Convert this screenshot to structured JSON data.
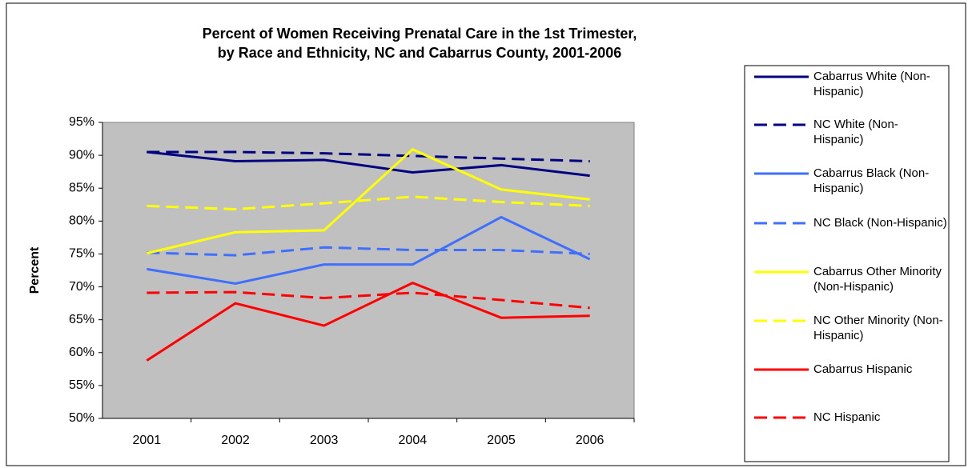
{
  "chart_data": {
    "type": "line",
    "title": [
      "Percent of Women Receiving Prenatal Care in the 1st Trimester,",
      "by Race and Ethnicity, NC and Cabarrus County, 2001-2006"
    ],
    "y_label": "Percent",
    "categories": [
      "2001",
      "2002",
      "2003",
      "2004",
      "2005",
      "2006"
    ],
    "ylim": [
      50,
      95
    ],
    "yticks": [
      {
        "value": 50,
        "label": "50%"
      },
      {
        "value": 55,
        "label": "55%"
      },
      {
        "value": 60,
        "label": "60%"
      },
      {
        "value": 65,
        "label": "65%"
      },
      {
        "value": 70,
        "label": "70%"
      },
      {
        "value": 75,
        "label": "75%"
      },
      {
        "value": 80,
        "label": "80%"
      },
      {
        "value": 85,
        "label": "85%"
      },
      {
        "value": 90,
        "label": "90%"
      },
      {
        "value": 95,
        "label": "95%"
      }
    ],
    "grid": false,
    "legend": "right",
    "series": [
      {
        "name": "Cabarrus White (Non-Hispanic)",
        "color": "#000080",
        "dashed": false,
        "values": [
          90.5,
          89.1,
          89.3,
          87.4,
          88.5,
          86.9
        ]
      },
      {
        "name": "NC White  (Non-Hispanic)",
        "color": "#000080",
        "dashed": true,
        "values": [
          90.5,
          90.5,
          90.3,
          89.9,
          89.5,
          89.1
        ]
      },
      {
        "name": "Cabarrus Black (Non-Hispanic)",
        "color": "#3f6fff",
        "dashed": false,
        "values": [
          72.7,
          70.5,
          73.4,
          73.4,
          80.6,
          74.2
        ]
      },
      {
        "name": "NC Black  (Non-Hispanic)",
        "color": "#3f6fff",
        "dashed": true,
        "values": [
          75.2,
          74.8,
          76.0,
          75.6,
          75.6,
          75.0
        ]
      },
      {
        "name": "Cabarrus Other Minority  (Non-Hispanic)",
        "color": "#ffff00",
        "dashed": false,
        "values": [
          75.1,
          78.3,
          78.6,
          90.9,
          84.8,
          83.3
        ]
      },
      {
        "name": "NC Other Minority (Non-Hispanic)",
        "color": "#ffff00",
        "dashed": true,
        "values": [
          82.3,
          81.8,
          82.7,
          83.7,
          82.9,
          82.3
        ]
      },
      {
        "name": "Cabarrus Hispanic",
        "color": "#ff0000",
        "dashed": false,
        "values": [
          58.8,
          67.5,
          64.1,
          70.6,
          65.3,
          65.6
        ]
      },
      {
        "name": "NC Hispanic",
        "color": "#ff0000",
        "dashed": true,
        "values": [
          69.1,
          69.2,
          68.3,
          69.1,
          68.0,
          66.8
        ]
      }
    ]
  }
}
